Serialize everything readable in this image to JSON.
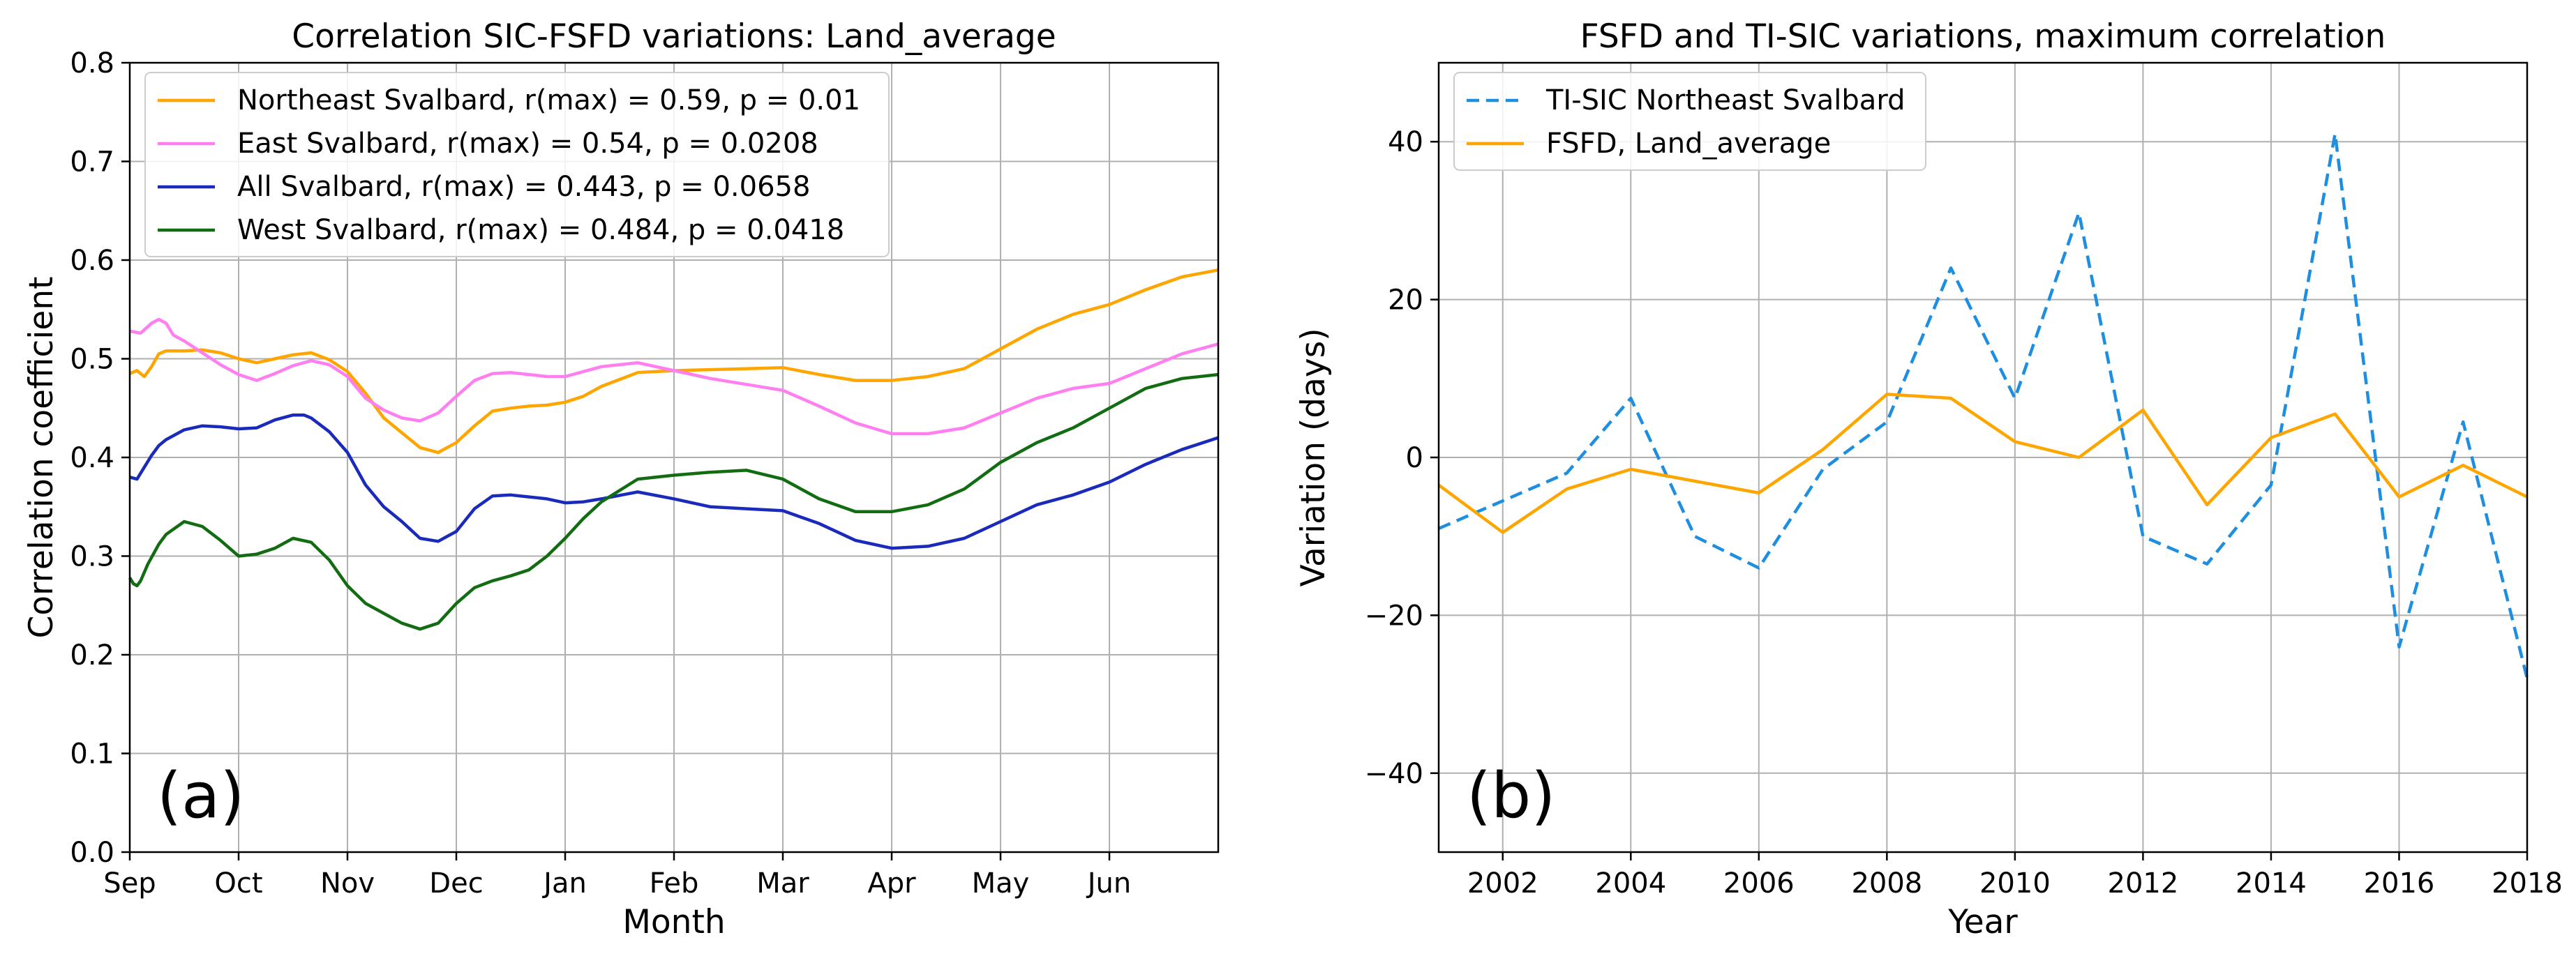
{
  "chart_data": [
    {
      "type": "line",
      "panel_label": "(a)",
      "title": "Correlation SIC-FSFD variations: Land_average",
      "xlabel": "Month",
      "ylabel": "Correlation coefficient",
      "categories": [
        "Sep",
        "Oct",
        "Nov",
        "Dec",
        "Jan",
        "Feb",
        "Mar",
        "Apr",
        "May",
        "Jun"
      ],
      "yticks": [
        "0.0",
        "0.1",
        "0.2",
        "0.3",
        "0.4",
        "0.5",
        "0.6",
        "0.7",
        "0.8"
      ],
      "xlim": [
        0,
        300
      ],
      "ylim": [
        0.0,
        0.8
      ],
      "grid": true,
      "legend_position": "upper-left",
      "series": [
        {
          "name": "Northeast Svalbard, r(max) = 0.59, p = 0.01",
          "color": "#ffa500",
          "dash": "solid",
          "x": [
            0,
            2,
            4,
            6,
            8,
            10,
            15,
            20,
            25,
            30,
            35,
            40,
            45,
            50,
            55,
            60,
            65,
            70,
            75,
            80,
            85,
            90,
            95,
            100,
            105,
            110,
            115,
            120,
            125,
            130,
            140,
            150,
            160,
            170,
            180,
            190,
            200,
            210,
            220,
            230,
            240,
            250,
            260,
            270,
            280,
            290,
            300
          ],
          "values": [
            0.485,
            0.488,
            0.482,
            0.492,
            0.505,
            0.508,
            0.508,
            0.509,
            0.506,
            0.5,
            0.496,
            0.5,
            0.504,
            0.506,
            0.499,
            0.487,
            0.465,
            0.44,
            0.425,
            0.41,
            0.405,
            0.415,
            0.432,
            0.447,
            0.45,
            0.452,
            0.453,
            0.456,
            0.462,
            0.472,
            0.486,
            0.488,
            0.489,
            0.49,
            0.491,
            0.484,
            0.478,
            0.478,
            0.482,
            0.49,
            0.51,
            0.53,
            0.545,
            0.555,
            0.57,
            0.583,
            0.59
          ]
        },
        {
          "name": "East Svalbard, r(max) = 0.54, p = 0.0208",
          "color": "#ff7ef0",
          "dash": "solid",
          "x": [
            0,
            3,
            6,
            8,
            10,
            12,
            15,
            20,
            25,
            30,
            35,
            40,
            45,
            50,
            55,
            60,
            65,
            70,
            75,
            80,
            85,
            90,
            95,
            100,
            105,
            110,
            115,
            120,
            125,
            130,
            140,
            150,
            160,
            170,
            180,
            190,
            200,
            210,
            220,
            230,
            240,
            250,
            260,
            270,
            280,
            290,
            300
          ],
          "values": [
            0.528,
            0.526,
            0.536,
            0.54,
            0.536,
            0.524,
            0.518,
            0.506,
            0.494,
            0.484,
            0.478,
            0.485,
            0.493,
            0.498,
            0.494,
            0.482,
            0.46,
            0.448,
            0.44,
            0.437,
            0.445,
            0.462,
            0.478,
            0.485,
            0.486,
            0.484,
            0.482,
            0.482,
            0.487,
            0.492,
            0.496,
            0.488,
            0.48,
            0.474,
            0.468,
            0.452,
            0.435,
            0.424,
            0.424,
            0.43,
            0.445,
            0.46,
            0.47,
            0.475,
            0.49,
            0.505,
            0.515
          ]
        },
        {
          "name": "All Svalbard, r(max) = 0.443, p = 0.0658",
          "color": "#1a2abb",
          "dash": "solid",
          "x": [
            0,
            2,
            4,
            6,
            8,
            10,
            15,
            20,
            25,
            30,
            35,
            40,
            45,
            48,
            50,
            55,
            60,
            65,
            70,
            75,
            80,
            85,
            90,
            95,
            100,
            105,
            110,
            115,
            120,
            125,
            130,
            140,
            150,
            160,
            170,
            180,
            190,
            200,
            210,
            220,
            230,
            240,
            250,
            260,
            270,
            280,
            290,
            300
          ],
          "values": [
            0.38,
            0.378,
            0.39,
            0.402,
            0.412,
            0.418,
            0.428,
            0.432,
            0.431,
            0.429,
            0.43,
            0.438,
            0.443,
            0.443,
            0.44,
            0.426,
            0.405,
            0.372,
            0.35,
            0.335,
            0.318,
            0.315,
            0.325,
            0.348,
            0.361,
            0.362,
            0.36,
            0.358,
            0.354,
            0.355,
            0.358,
            0.365,
            0.358,
            0.35,
            0.348,
            0.346,
            0.333,
            0.316,
            0.308,
            0.31,
            0.318,
            0.335,
            0.352,
            0.362,
            0.375,
            0.393,
            0.408,
            0.42
          ]
        },
        {
          "name": "West Svalbard, r(max) = 0.484, p = 0.0418",
          "color": "#126c12",
          "dash": "solid",
          "x": [
            0,
            1,
            2,
            3,
            5,
            8,
            10,
            15,
            20,
            25,
            30,
            35,
            40,
            45,
            50,
            55,
            60,
            65,
            70,
            75,
            80,
            85,
            90,
            95,
            100,
            105,
            110,
            115,
            120,
            125,
            130,
            140,
            150,
            160,
            170,
            180,
            190,
            200,
            210,
            220,
            230,
            240,
            250,
            260,
            270,
            280,
            290,
            300
          ],
          "values": [
            0.278,
            0.272,
            0.27,
            0.275,
            0.292,
            0.312,
            0.322,
            0.335,
            0.33,
            0.316,
            0.3,
            0.302,
            0.308,
            0.318,
            0.314,
            0.296,
            0.27,
            0.252,
            0.242,
            0.232,
            0.226,
            0.232,
            0.252,
            0.268,
            0.275,
            0.28,
            0.286,
            0.3,
            0.318,
            0.338,
            0.355,
            0.378,
            0.382,
            0.385,
            0.387,
            0.378,
            0.358,
            0.345,
            0.345,
            0.352,
            0.368,
            0.395,
            0.415,
            0.43,
            0.45,
            0.47,
            0.48,
            0.484
          ]
        }
      ]
    },
    {
      "type": "line",
      "panel_label": "(b)",
      "title": "FSFD and TI-SIC variations, maximum correlation",
      "xlabel": "Year",
      "ylabel": "Variation (days)",
      "xticks": [
        "2002",
        "2004",
        "2006",
        "2008",
        "2010",
        "2012",
        "2014",
        "2016",
        "2018"
      ],
      "yticks": [
        "−40",
        "−20",
        "0",
        "20",
        "40"
      ],
      "xlim": [
        2001,
        2018
      ],
      "ylim": [
        -50,
        50
      ],
      "grid": true,
      "legend_position": "upper-left",
      "x": [
        2001,
        2002,
        2003,
        2004,
        2005,
        2006,
        2007,
        2008,
        2009,
        2010,
        2011,
        2012,
        2013,
        2014,
        2015,
        2016,
        2017,
        2018
      ],
      "series": [
        {
          "name": "TI-SIC Northeast Svalbard",
          "color": "#1e8fe0",
          "dash": "dashed",
          "values": [
            -9,
            -5.5,
            -2,
            7.5,
            -10,
            -14,
            -1.5,
            4.5,
            24,
            7.5,
            31,
            -10,
            -13.5,
            -3.5,
            41,
            -24,
            4.5,
            -28
          ]
        },
        {
          "name": "FSFD, Land_average",
          "color": "#ffa500",
          "dash": "solid",
          "values": [
            -3.5,
            -9.5,
            -4,
            -1.5,
            -3,
            -4.5,
            1,
            8,
            7.5,
            2,
            0,
            6,
            -6,
            2.5,
            5.5,
            -5,
            -1,
            -5
          ]
        }
      ]
    }
  ]
}
